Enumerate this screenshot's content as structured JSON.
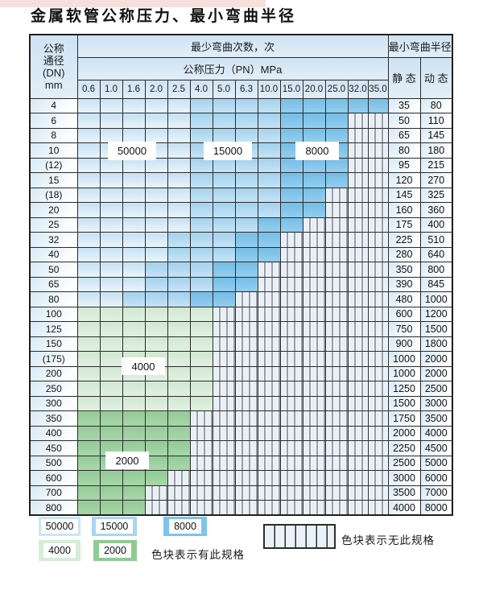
{
  "title": "金属软管公称压力、最小弯曲半径",
  "table": {
    "header": {
      "dn_lines": [
        "公称",
        "通径",
        "(DN)",
        "mm"
      ],
      "bend_cycles": "最少弯曲次数，次",
      "pressure": "公称压力（PN）MPa",
      "radius": "最小弯曲半径",
      "static_label": "静 态",
      "dynamic_label": "动 态",
      "pressures": [
        "0.6",
        "1.0",
        "1.6",
        "2.0",
        "2.5",
        "4.0",
        "5.0",
        "6.3",
        "10.0",
        "15.0",
        "20.0",
        "25.0",
        "32.0",
        "35.0"
      ]
    },
    "cell_legend": {
      "L": "50000",
      "M": "15000",
      "D": "8000",
      "P": "4000",
      "G": "2000",
      "X": "no-spec"
    },
    "rows": [
      {
        "dn": "4",
        "cells": "LLLLLMMMMDDDDD",
        "static": "35",
        "dynamic": "80"
      },
      {
        "dn": "6",
        "cells": "LLLLLMMMMDDDXX",
        "static": "50",
        "dynamic": "110"
      },
      {
        "dn": "8",
        "cells": "LLLLLMMMMDDDXX",
        "static": "65",
        "dynamic": "145"
      },
      {
        "dn": "10",
        "cells": "LLLLLMMMMDDDXX",
        "static": "80",
        "dynamic": "180"
      },
      {
        "dn": "(12)",
        "cells": "LLLLLMMMMDDDXX",
        "static": "95",
        "dynamic": "215"
      },
      {
        "dn": "15",
        "cells": "LLLLLMMMMDDDXX",
        "static": "120",
        "dynamic": "270"
      },
      {
        "dn": "(18)",
        "cells": "LLLLLMMMMDDXXX",
        "static": "145",
        "dynamic": "325"
      },
      {
        "dn": "20",
        "cells": "LLLLLMMMMDDXXX",
        "static": "160",
        "dynamic": "360"
      },
      {
        "dn": "25",
        "cells": "LLLLLMMMDDXXXX",
        "static": "175",
        "dynamic": "400"
      },
      {
        "dn": "32",
        "cells": "LLLLMMMDDXXXXX",
        "static": "225",
        "dynamic": "510"
      },
      {
        "dn": "40",
        "cells": "LLLLMMMDDXXXXX",
        "static": "280",
        "dynamic": "640"
      },
      {
        "dn": "50",
        "cells": "LLLMMMDDXXXXXX",
        "static": "350",
        "dynamic": "800"
      },
      {
        "dn": "65",
        "cells": "LLLMMMDDXXXXXX",
        "static": "390",
        "dynamic": "845"
      },
      {
        "dn": "80",
        "cells": "LLMMMDDXXXXXXX",
        "static": "480",
        "dynamic": "1000"
      },
      {
        "dn": "100",
        "cells": "PPPPPPXXXXXXXX",
        "static": "600",
        "dynamic": "1200"
      },
      {
        "dn": "125",
        "cells": "PPPPPPXXXXXXXX",
        "static": "750",
        "dynamic": "1500"
      },
      {
        "dn": "150",
        "cells": "PPPPPPXXXXXXXX",
        "static": "900",
        "dynamic": "1800"
      },
      {
        "dn": "(175)",
        "cells": "PPPPPPXXXXXXXX",
        "static": "1000",
        "dynamic": "2000"
      },
      {
        "dn": "200",
        "cells": "PPPPPPXXXXXXXX",
        "static": "1000",
        "dynamic": "2000"
      },
      {
        "dn": "250",
        "cells": "PPPPPPXXXXXXXX",
        "static": "1250",
        "dynamic": "2500"
      },
      {
        "dn": "300",
        "cells": "PPPPPPXXXXXXXX",
        "static": "1500",
        "dynamic": "3000"
      },
      {
        "dn": "350",
        "cells": "GGGGGXXXXXXXXX",
        "static": "1750",
        "dynamic": "3500"
      },
      {
        "dn": "400",
        "cells": "GGGGGXXXXXXXXX",
        "static": "2000",
        "dynamic": "4000"
      },
      {
        "dn": "450",
        "cells": "GGGGGXXXXXXXXX",
        "static": "2250",
        "dynamic": "4500"
      },
      {
        "dn": "500",
        "cells": "GGGGGXXXXXXXXX",
        "static": "2500",
        "dynamic": "5000"
      },
      {
        "dn": "600",
        "cells": "GGGGXXXXXXXXXX",
        "static": "3000",
        "dynamic": "6000"
      },
      {
        "dn": "700",
        "cells": "GGGXXXXXXXXXXX",
        "static": "3500",
        "dynamic": "7000"
      },
      {
        "dn": "800",
        "cells": "GGGXXXXXXXXXXX",
        "static": "4000",
        "dynamic": "8000"
      }
    ]
  },
  "zone_labels": {
    "z50000": "50000",
    "z15000": "15000",
    "z8000": "8000",
    "z4000": "4000",
    "z2000": "2000"
  },
  "legend": {
    "swatches": [
      {
        "label": "50000",
        "color": "#cbe5f7"
      },
      {
        "label": "15000",
        "color": "#a9d5f0"
      },
      {
        "label": "8000",
        "color": "#7fc3ea"
      },
      {
        "label": "4000",
        "color": "#d7ecd7"
      },
      {
        "label": "2000",
        "color": "#90ca94"
      }
    ],
    "has_spec": "色块表示有此规格",
    "no_spec": "色块表示无此规格"
  },
  "colors": {
    "grid_line": "#2b2b2b",
    "header_bg": "#d9e8f5",
    "hatch_bg": "#e7eff7",
    "strip_pink": "#f5e0dc"
  }
}
